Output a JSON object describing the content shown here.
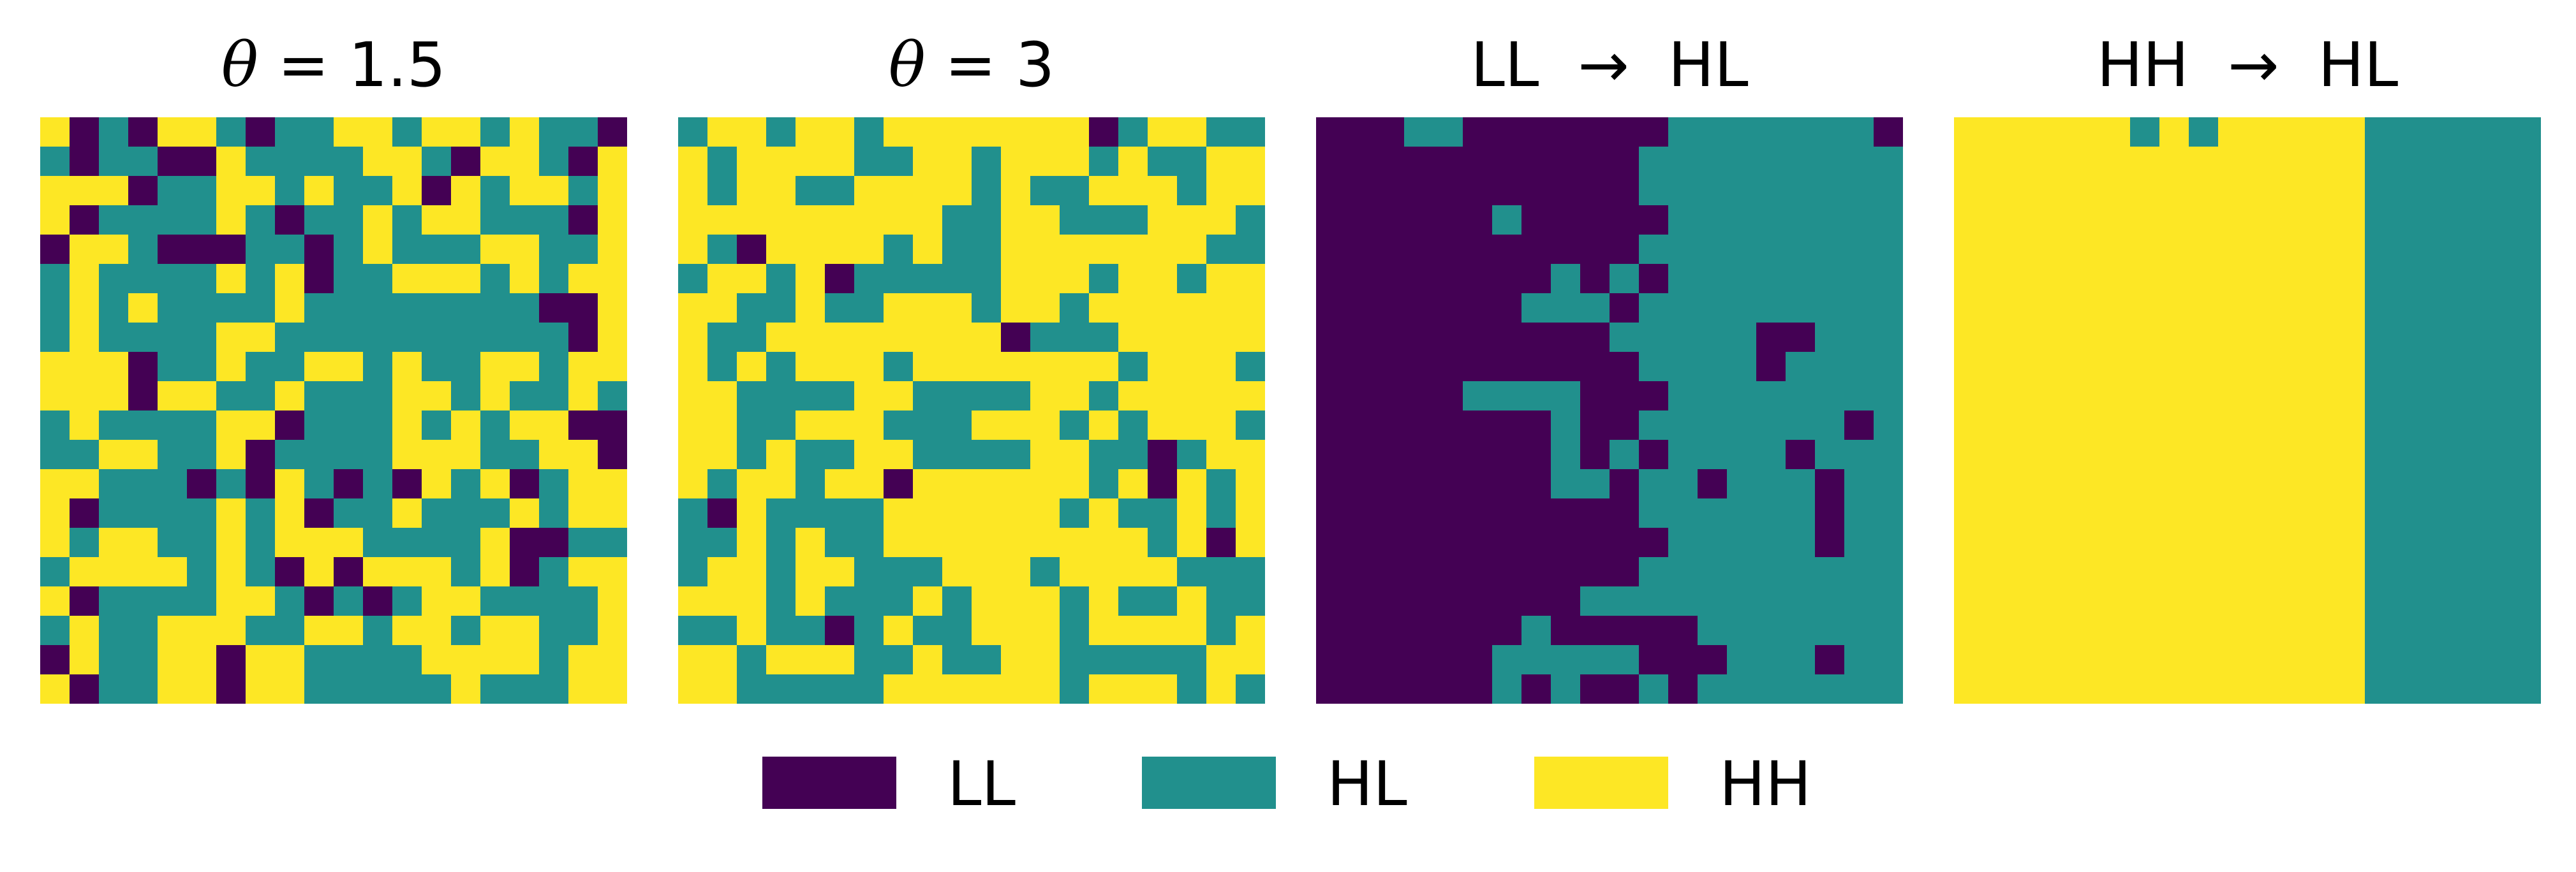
{
  "figure": {
    "panels": [
      {
        "title_math": "θ",
        "title_rest": " = 1.5",
        "title": ""
      },
      {
        "title_math": "θ",
        "title_rest": " = 3",
        "title": ""
      },
      {
        "title_math": "",
        "title_rest": "",
        "title": "LL  →  HL"
      },
      {
        "title_math": "",
        "title_rest": "",
        "title": "HH  →  HL"
      }
    ],
    "legend": [
      {
        "label": "LL",
        "color": "#440154"
      },
      {
        "label": "HL",
        "color": "#21908d"
      },
      {
        "label": "HH",
        "color": "#fde725"
      }
    ]
  },
  "chart_data": {
    "type": "heatmap",
    "grid_size": [
      20,
      20
    ],
    "legend_placement": "bottom-center",
    "codes": {
      "0": "LL",
      "1": "HL",
      "2": "HH"
    },
    "colors": {
      "LL": "#440154",
      "HL": "#21908d",
      "HH": "#fde725"
    },
    "panels": [
      {
        "title": "θ = 1.5",
        "cells": [
          "20102210112212212110",
          "10110021111221022102",
          "22201122121120212212",
          "20111121011212211102",
          "02210001101211122112",
          "12111121201122212122",
          "12121111211111111002",
          "12111122111111111102",
          "22201121122121122122",
          "22202211211122121121",
          "12111122011121212200",
          "11221120111122211220",
          "22111010210102120122",
          "20111121201121112122",
          "21221121222111120011",
          "12222121020222120122",
          "20111122101012211112",
          "12112221122122122112",
          "02112202211112222122",
          "20112202211111211122"
        ]
      },
      {
        "title": "θ = 3",
        "cells": [
          "12212212222222012211",
          "21222211221222121122",
          "21221122221211222122",
          "22222222211221112221",
          "21022221211222222211",
          "12212011111222122122",
          "22112112221221222222",
          "21122222222011122222",
          "21212221222222212221",
          "22111122111122122222",
          "22112221112221212221",
          "22121122111122110122",
          "21221220222222120212",
          "10211112222221211212",
          "11212112222222221202",
          "12212211122212222111",
          "22212111212221211211",
          "11211012112221222212",
          "22122211211221111122",
          "22111112222221222121"
        ]
      },
      {
        "title": "LL  →  HL",
        "cells": [
          "00011000000011111110",
          "00000000000111111111",
          "00000000000111111111",
          "00000010000011111111",
          "00000000000111111111",
          "00000000101011111111",
          "00000001110111111111",
          "00000000001111100111",
          "00000000000111101111",
          "00000111100011111111",
          "00000000100111111101",
          "00000000101011110111",
          "00000000110110111011",
          "00000000000111111011",
          "00000000000011111011",
          "00000000000111111111",
          "00000000011111111111",
          "00000001000001111111",
          "00000011111000111011",
          "00000010100101111111"
        ]
      },
      {
        "title": "HH  →  HL",
        "cells": [
          "22222212122222111111",
          "22222222222222111111",
          "22222222222222111111",
          "22222222222222111111",
          "22222222222222111111",
          "22222222222222111111",
          "22222222222222111111",
          "22222222222222111111",
          "22222222222222111111",
          "22222222222222111111",
          "22222222222222111111",
          "22222222222222111111",
          "22222222222222111111",
          "22222222222222111111",
          "22222222222222111111",
          "22222222222222111111",
          "22222222222222111111",
          "22222222222222111111",
          "22222222222222111111",
          "22222222222222111111"
        ]
      }
    ]
  }
}
